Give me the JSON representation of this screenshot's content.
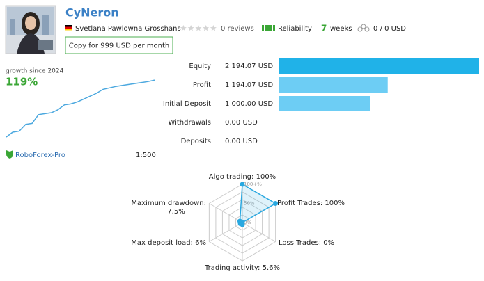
{
  "header": {
    "name": "CyNeron",
    "author": "Svetlana Pawlowna Grosshans",
    "reviews": "0 reviews",
    "reliability": "Reliability",
    "weeks_value": "7",
    "weeks_unit": "weeks",
    "subscribers": "0 / 0 USD",
    "copy_button": "Copy for 999 USD per month"
  },
  "growth": {
    "caption": "growth since 2024",
    "value": "119%",
    "line": {
      "type": "line",
      "values": [
        0,
        10,
        12,
        26,
        28,
        46,
        48,
        50,
        56,
        66,
        68,
        72,
        78,
        84,
        90,
        98,
        101,
        104,
        106,
        108,
        110,
        112,
        114,
        117
      ],
      "ylim": [
        0,
        120
      ],
      "color": "#4ba8df"
    }
  },
  "account": {
    "broker": "RoboForex-Pro",
    "leverage": "1:500"
  },
  "balance": {
    "type": "bar",
    "rows": [
      {
        "name": "Equity",
        "value": 2194.07,
        "label": "2 194.07 USD",
        "color": "#20b2e8"
      },
      {
        "name": "Profit",
        "value": 1194.07,
        "label": "1 194.07 USD",
        "color": "#6dcdf4"
      },
      {
        "name": "Initial Deposit",
        "value": 1000.0,
        "label": "1 000.00 USD",
        "color": "#6dcdf4"
      },
      {
        "name": "Withdrawals",
        "value": 0.0,
        "label": "0.00 USD",
        "color": "#6dcdf4"
      },
      {
        "name": "Deposits",
        "value": 0.0,
        "label": "0.00 USD",
        "color": "#6dcdf4"
      }
    ]
  },
  "radar": {
    "type": "radar",
    "color": "#29a8e0",
    "rlim": [
      0,
      100
    ],
    "rticks": [
      {
        "value": 100,
        "label": "100+%"
      },
      {
        "value": 50,
        "label": "50%"
      },
      {
        "value": 0,
        "label": "0%"
      }
    ],
    "axes": [
      {
        "name": "Algo trading:",
        "value": 100,
        "label": "100%"
      },
      {
        "name": "Profit Trades:",
        "value": 100,
        "label": "100%"
      },
      {
        "name": "Loss Trades:",
        "value": 0,
        "label": "0%"
      },
      {
        "name": "Trading activity:",
        "value": 5.6,
        "label": "5.6%"
      },
      {
        "name": "Max deposit load:",
        "value": 6,
        "label": "6%"
      },
      {
        "name": "Maximum drawdown:",
        "value": 7.5,
        "label": "7.5%"
      }
    ]
  }
}
